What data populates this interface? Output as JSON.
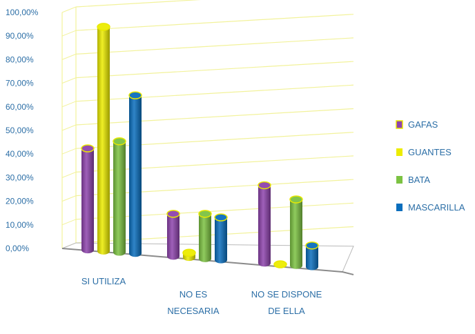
{
  "chart_data": {
    "type": "bar",
    "title": "",
    "xlabel": "",
    "ylabel": "",
    "ylim": [
      0,
      100
    ],
    "y_ticks": [
      "0,00%",
      "10,00%",
      "20,00%",
      "30,00%",
      "40,00%",
      "50,00%",
      "60,00%",
      "70,00%",
      "80,00%",
      "90,00%",
      "100,00%"
    ],
    "categories": [
      [
        "SI UTILIZA"
      ],
      [
        "NO ES",
        "NECESARIA"
      ],
      [
        "NO SE DISPONE",
        "DE ELLA"
      ]
    ],
    "series": [
      {
        "name": "GAFAS",
        "color": "#8e44ad",
        "values": [
          43,
          18,
          33
        ]
      },
      {
        "name": "GUANTES",
        "color": "#ecec00",
        "values": [
          95,
          2,
          0
        ]
      },
      {
        "name": "BATA",
        "color": "#7cc242",
        "values": [
          47,
          19,
          28
        ]
      },
      {
        "name": "MASCARILLA",
        "color": "#0a6ebd",
        "values": [
          67,
          18,
          9
        ]
      }
    ],
    "legend": "right",
    "grid": true,
    "style": "3d-cylinder"
  }
}
